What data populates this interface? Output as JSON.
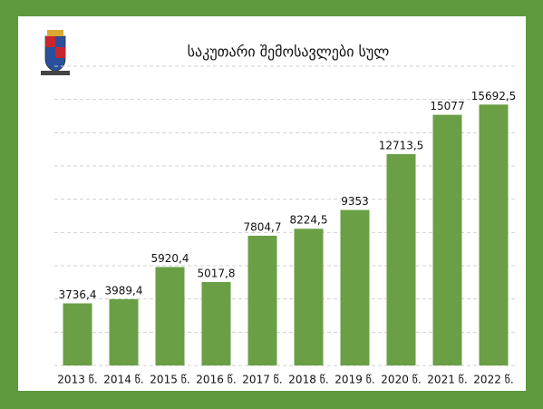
{
  "chart_data": {
    "type": "bar",
    "title": "საკუთარი შემოსავლები სულ",
    "categories": [
      "2013 წ.",
      "2014 წ.",
      "2015 წ.",
      "2016 წ.",
      "2017 წ.",
      "2018 წ.",
      "2019 წ.",
      "2020 წ.",
      "2021 წ.",
      "2022 წ."
    ],
    "values": [
      3736.4,
      3989.4,
      5920.4,
      5017.8,
      7804.7,
      8224.5,
      9353,
      12713.5,
      15077,
      15692.5
    ],
    "value_labels": [
      "3736,4",
      "3989,4",
      "5920,4",
      "5017,8",
      "7804,7",
      "8224,5",
      "9353",
      "12713,5",
      "15077",
      "15692,5"
    ],
    "color": "#6a9f45",
    "ylim": [
      0,
      18000
    ],
    "yticks": [
      0,
      2000,
      4000,
      6000,
      8000,
      10000,
      12000,
      14000,
      16000,
      18000
    ],
    "grid": true
  }
}
